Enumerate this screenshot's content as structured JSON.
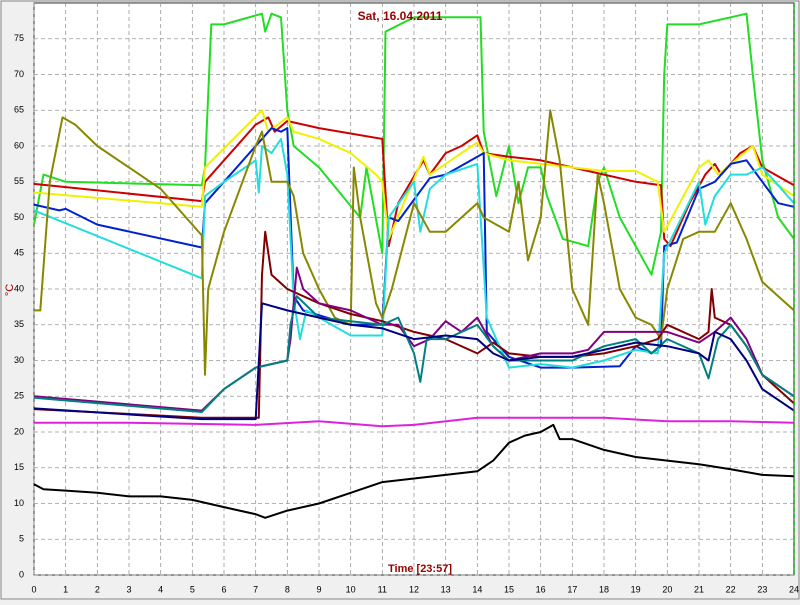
{
  "chart_data": {
    "type": "line",
    "title": "Sat, 16.04.2011",
    "xlabel": "Time [23:57]",
    "ylabel": "°C",
    "xlim": [
      0,
      24
    ],
    "xticks": [
      0,
      1,
      2,
      3,
      4,
      5,
      6,
      7,
      8,
      9,
      10,
      11,
      12,
      13,
      14,
      15,
      16,
      17,
      18,
      19,
      20,
      21,
      22,
      23,
      24
    ],
    "ylim": [
      0,
      80
    ],
    "yticks": [
      0,
      5,
      10,
      15,
      20,
      25,
      30,
      35,
      40,
      45,
      50,
      55,
      60,
      65,
      70,
      75
    ],
    "grid": true,
    "series": [
      {
        "color": "#22dd22",
        "x": [
          0,
          0.3,
          1,
          5.3,
          5.4,
          5.6,
          6,
          7.2,
          7.3,
          7.5,
          7.8,
          8,
          8.2,
          9,
          10.3,
          10.5,
          11,
          11.1,
          12,
          14.1,
          14.2,
          14.6,
          15,
          15.3,
          15.6,
          16,
          16.2,
          16.7,
          17.5,
          17.8,
          18,
          18.5,
          19,
          19.5,
          19.8,
          19.9,
          20,
          21,
          22,
          22.5,
          22.7,
          23,
          23.5,
          24
        ],
        "values": [
          49,
          56,
          55,
          54.5,
          57,
          77,
          77,
          78.5,
          76,
          78.5,
          78,
          65,
          60,
          57,
          50,
          57,
          45,
          76,
          78,
          78,
          62,
          53,
          60,
          52,
          57,
          57,
          53,
          47,
          46,
          55,
          57,
          50,
          46,
          42,
          48,
          70,
          77,
          77,
          78,
          78.5,
          70,
          58,
          50,
          47
        ]
      },
      {
        "color": "#cc0000",
        "x": [
          0,
          5.3,
          5.4,
          7,
          7.4,
          7.6,
          8,
          9,
          11,
          11.2,
          11.5,
          12.3,
          12.5,
          13,
          13.5,
          14,
          14.2,
          15,
          16,
          17,
          18,
          19,
          19.8,
          19.9,
          20.1,
          20.7,
          21.2,
          21.5,
          21.7,
          22.3,
          22.7,
          23,
          24
        ],
        "values": [
          54.7,
          52.3,
          55,
          63,
          64,
          62,
          63.5,
          62.5,
          61,
          46,
          52,
          58,
          56,
          59,
          60,
          61.5,
          59,
          58.5,
          58,
          57,
          56,
          55,
          54.5,
          47,
          46,
          52,
          56,
          57.5,
          56,
          59,
          60,
          57,
          54.5
        ]
      },
      {
        "color": "#f0f000",
        "x": [
          0,
          5.3,
          5.4,
          7.2,
          7.4,
          8,
          8.2,
          9,
          10,
          10.8,
          11,
          11.2,
          12.3,
          12.5,
          14,
          14.2,
          15,
          16,
          17,
          18,
          19,
          19.7,
          19.9,
          21,
          21.3,
          21.6,
          22.7,
          23,
          24
        ],
        "values": [
          53.5,
          51.5,
          57,
          65,
          62,
          64,
          62,
          61,
          59,
          56,
          55,
          47,
          58.5,
          56,
          60.5,
          59,
          58,
          57.5,
          57,
          56.5,
          56.5,
          55,
          48,
          57,
          58,
          56,
          60,
          56,
          53
        ]
      },
      {
        "color": "#0022cc",
        "x": [
          0,
          0.8,
          1,
          2,
          5.3,
          5.4,
          6,
          7.2,
          7.5,
          7.8,
          8,
          8.2,
          8.5,
          10,
          11,
          11.2,
          11.5,
          12.5,
          13,
          14,
          14.2,
          14.3,
          15,
          16,
          17,
          18.5,
          19,
          19.5,
          19.8,
          19.9,
          20.3,
          21,
          21.5,
          22,
          22.5,
          23,
          23.5,
          24
        ],
        "values": [
          51.8,
          51,
          51.2,
          49,
          45.8,
          52,
          55,
          61,
          62.5,
          62,
          62.5,
          39,
          37,
          35,
          35,
          50,
          49.5,
          55.5,
          56,
          58.5,
          59,
          34,
          30.5,
          29,
          29,
          29.2,
          32,
          31,
          32,
          46,
          46.5,
          54,
          55,
          57.5,
          58,
          55,
          52,
          51.5
        ]
      },
      {
        "color": "#22dddd",
        "x": [
          0,
          5.3,
          5.4,
          6,
          7,
          7.1,
          7.2,
          7.5,
          7.8,
          8,
          8.2,
          8.4,
          8.6,
          10,
          11,
          11.2,
          12,
          12.2,
          12.5,
          13,
          14,
          14.3,
          15,
          16,
          17,
          18,
          19,
          19.7,
          19.9,
          21,
          21.2,
          21.5,
          22,
          22.5,
          23,
          24
        ],
        "values": [
          51,
          41.5,
          53,
          55,
          58,
          53.5,
          60,
          59,
          61,
          56,
          38.5,
          33,
          37,
          33.5,
          33.5,
          50,
          55,
          48,
          54,
          56,
          57.5,
          36,
          29,
          29.5,
          29,
          30,
          31.5,
          31,
          45,
          55,
          49,
          53,
          56,
          56,
          57,
          52
        ]
      },
      {
        "color": "#888800",
        "x": [
          0,
          0.2,
          0.5,
          0.9,
          1.3,
          2,
          4,
          5.3,
          5.4,
          5.5,
          6,
          7,
          7.2,
          7.5,
          8,
          8.2,
          8.5,
          9,
          9.5,
          10,
          10.1,
          10.3,
          10.8,
          11,
          11.3,
          12,
          12.5,
          13,
          14,
          14.2,
          15,
          15.3,
          15.6,
          16,
          16.3,
          16.6,
          17,
          17.5,
          17.8,
          18,
          18.5,
          19,
          19.5,
          19.8,
          20,
          20.5,
          21,
          21.5,
          22,
          22.5,
          23,
          23.5,
          24
        ],
        "values": [
          37,
          37,
          55,
          64,
          63,
          60,
          54,
          47.5,
          28,
          40,
          48,
          60,
          62,
          55,
          55,
          53,
          45,
          40,
          36,
          35,
          57,
          50,
          38,
          36,
          40,
          52,
          48,
          48,
          52,
          50,
          48,
          55,
          44,
          50,
          65,
          58,
          40,
          35,
          56,
          52,
          40,
          36,
          35,
          33,
          40,
          47,
          48,
          48,
          52,
          47,
          41,
          39,
          37
        ]
      },
      {
        "color": "#800000",
        "x": [
          0,
          5.3,
          7.1,
          7.2,
          7.3,
          7.5,
          8,
          9,
          10,
          11,
          12,
          13,
          14,
          14.5,
          15,
          16,
          17,
          18,
          19,
          19.7,
          20,
          21,
          21.3,
          21.4,
          21.5,
          22,
          22.5,
          23,
          24
        ],
        "values": [
          23.2,
          22,
          22,
          42,
          48,
          42,
          40,
          38,
          36.5,
          35.5,
          34,
          33,
          31,
          32.5,
          31,
          30.5,
          30.5,
          31,
          32,
          33,
          35,
          33,
          34,
          40,
          36,
          35,
          32,
          28,
          24
        ]
      },
      {
        "color": "#800080",
        "x": [
          0,
          5.3,
          6,
          7,
          7.5,
          8,
          8.1,
          8.3,
          8.5,
          9,
          10,
          11,
          11.5,
          12,
          12.5,
          13,
          13.5,
          14,
          14.5,
          15,
          16,
          17,
          17.5,
          18,
          19,
          19.5,
          20,
          21,
          21.5,
          22,
          22.5,
          23,
          24
        ],
        "values": [
          25,
          23,
          26,
          29,
          29.5,
          30,
          33,
          43,
          40,
          38,
          37,
          35,
          35,
          32,
          33,
          35.5,
          34,
          36,
          32,
          30,
          31,
          31,
          31.5,
          34,
          34,
          34,
          34,
          32.5,
          34,
          36,
          33,
          28,
          25
        ]
      },
      {
        "color": "#008080",
        "x": [
          0,
          5.3,
          6,
          7,
          8,
          8.1,
          8.3,
          9,
          10,
          11,
          11.5,
          12,
          12.2,
          12.4,
          13,
          14,
          14.5,
          15,
          16,
          17,
          18,
          19,
          19.5,
          20,
          21,
          21.3,
          21.6,
          22,
          22.5,
          23,
          24
        ],
        "values": [
          24.8,
          22.8,
          26,
          29,
          30,
          35,
          39,
          36,
          35.5,
          35,
          36,
          31,
          27,
          33,
          33,
          35,
          32,
          30,
          30,
          30,
          32,
          33,
          31,
          33,
          31,
          27.5,
          33,
          35,
          32,
          28,
          25
        ]
      },
      {
        "color": "#000080",
        "x": [
          0,
          5.3,
          7,
          7.2,
          8,
          9,
          10,
          11,
          12,
          13,
          14,
          14.5,
          15,
          16,
          17,
          18,
          19,
          20,
          21,
          21.3,
          21.5,
          22,
          22.5,
          23,
          24
        ],
        "values": [
          23.3,
          21.8,
          21.8,
          38,
          37,
          36,
          35,
          34.5,
          33,
          33.5,
          33,
          31,
          30,
          30.5,
          30.5,
          31.5,
          32.5,
          32,
          31,
          30,
          34,
          33,
          30,
          26,
          23
        ]
      },
      {
        "color": "#dd22dd",
        "x": [
          0,
          3,
          7,
          9,
          11,
          12,
          14,
          16,
          18,
          20,
          22,
          24
        ],
        "values": [
          21.3,
          21.3,
          21,
          21.5,
          20.8,
          21,
          22,
          22,
          22,
          21.5,
          21.5,
          21.3
        ]
      },
      {
        "color": "#000000",
        "x": [
          0,
          0.3,
          1,
          2,
          3,
          4,
          5,
          6,
          7,
          7.3,
          8,
          9,
          10,
          11,
          12,
          13,
          14,
          14.5,
          15,
          15.5,
          16,
          16.4,
          16.6,
          17,
          18,
          19,
          20,
          21,
          22,
          23,
          24
        ],
        "values": [
          12.7,
          12,
          11.8,
          11.5,
          11,
          11,
          10.5,
          9.5,
          8.5,
          8,
          9,
          10,
          11.5,
          13,
          13.5,
          14,
          14.5,
          16,
          18.5,
          19.5,
          20,
          21,
          19,
          19,
          17.5,
          16.5,
          16,
          15.5,
          14.8,
          14,
          13.8
        ]
      }
    ]
  }
}
